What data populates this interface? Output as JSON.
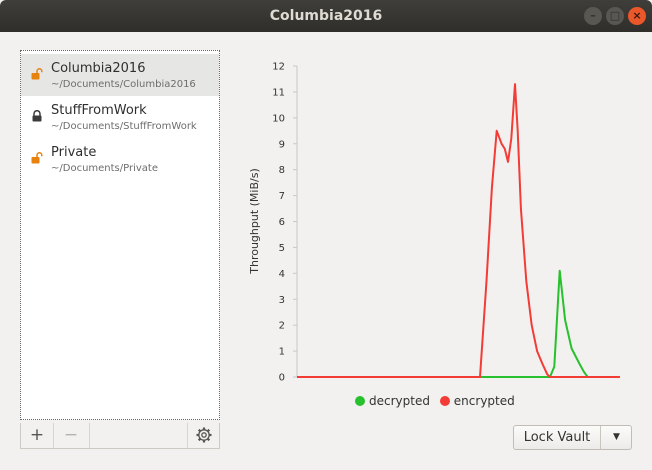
{
  "window": {
    "title": "Columbia2016"
  },
  "vaults": [
    {
      "name": "Columbia2016",
      "path": "~/Documents/Columbia2016",
      "locked": false,
      "selected": true
    },
    {
      "name": "StuffFromWork",
      "path": "~/Documents/StuffFromWork",
      "locked": true,
      "selected": false
    },
    {
      "name": "Private",
      "path": "~/Documents/Private",
      "locked": false,
      "selected": false
    }
  ],
  "toolbar": {
    "add": "+",
    "remove": "−"
  },
  "colors": {
    "decrypted": "#27c12d",
    "encrypted": "#f23c35",
    "unlocked_icon": "#e7820f",
    "locked_icon": "#3b3b3b"
  },
  "chart_data": {
    "type": "line",
    "ylabel": "Throughput (MiB/s)",
    "ylim": [
      0,
      12
    ],
    "yticks": [
      0,
      1,
      2,
      3,
      4,
      5,
      6,
      7,
      8,
      9,
      10,
      11,
      12
    ],
    "xlim": [
      0,
      60
    ],
    "grid": false,
    "legend": "bottom-center",
    "series": [
      {
        "name": "decrypted",
        "color": "#27c12d",
        "points": [
          [
            0,
            0
          ],
          [
            46,
            0
          ],
          [
            47,
            0
          ],
          [
            47.8,
            0.4
          ],
          [
            48.8,
            4.1
          ],
          [
            49.8,
            2.2
          ],
          [
            51,
            1.1
          ],
          [
            52.5,
            0.5
          ],
          [
            53.3,
            0.2
          ],
          [
            54,
            0
          ],
          [
            60,
            0
          ]
        ]
      },
      {
        "name": "encrypted",
        "color": "#f23c35",
        "points": [
          [
            0,
            0
          ],
          [
            34,
            0
          ],
          [
            35.2,
            3.7
          ],
          [
            36.2,
            7.3
          ],
          [
            37.1,
            9.5
          ],
          [
            38,
            9.0
          ],
          [
            38.6,
            8.8
          ],
          [
            39.2,
            8.3
          ],
          [
            39.8,
            9.2
          ],
          [
            40.5,
            11.3
          ],
          [
            41,
            9.5
          ],
          [
            41.6,
            6.5
          ],
          [
            42.6,
            3.7
          ],
          [
            43.6,
            2.0
          ],
          [
            44.6,
            1.0
          ],
          [
            45.6,
            0.5
          ],
          [
            46.5,
            0.1
          ],
          [
            47,
            0
          ],
          [
            60,
            0
          ]
        ]
      }
    ]
  },
  "lock_button": {
    "label": "Lock Vault",
    "arrow": "▼"
  }
}
